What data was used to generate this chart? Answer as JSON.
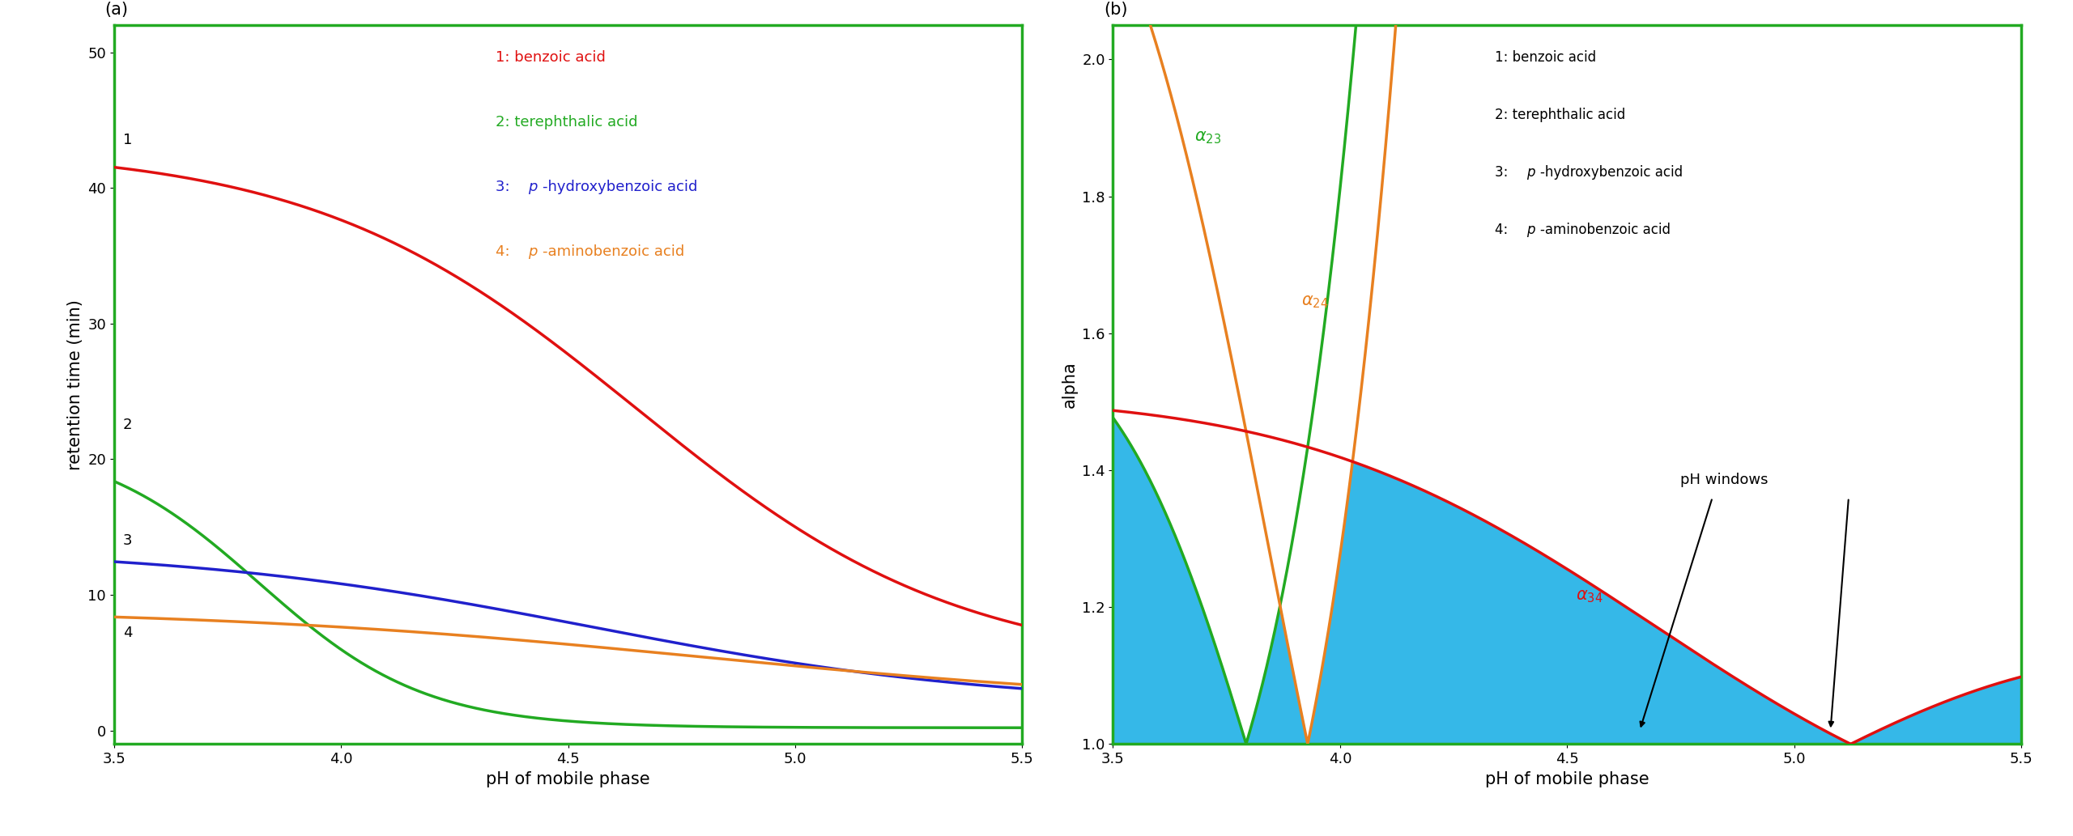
{
  "fig_width": 25.6,
  "fig_height": 10.33,
  "dpi": 100,
  "bg_color": "#ffffff",
  "border_color": "#22aa22",
  "panel_a": {
    "label": "(a)",
    "xlabel": "pH of mobile phase",
    "ylabel": "retention time (min)",
    "xlim": [
      3.5,
      5.5
    ],
    "ylim": [
      -1,
      52
    ],
    "yticks": [
      0,
      10,
      20,
      30,
      40,
      50
    ],
    "xticks": [
      3.5,
      4.0,
      4.5,
      5.0,
      5.5
    ],
    "colors": [
      "#e01010",
      "#22aa22",
      "#2020cc",
      "#e88020"
    ],
    "curve_label_offsets": [
      [
        3.52,
        43.5,
        "1"
      ],
      [
        3.52,
        22.5,
        "2"
      ],
      [
        3.52,
        14.0,
        "3"
      ],
      [
        3.52,
        7.2,
        "4"
      ]
    ]
  },
  "panel_b": {
    "label": "(b)",
    "xlabel": "pH of mobile phase",
    "ylabel": "alpha",
    "xlim": [
      3.5,
      5.5
    ],
    "ylim": [
      1.0,
      2.05
    ],
    "yticks": [
      1.0,
      1.2,
      1.4,
      1.6,
      1.8,
      2.0
    ],
    "xticks": [
      3.5,
      4.0,
      4.5,
      5.0,
      5.5
    ],
    "fill_color": "#35b8e8",
    "alpha23_color": "#22aa22",
    "alpha24_color": "#e88020",
    "alpha34_color": "#e01010"
  }
}
